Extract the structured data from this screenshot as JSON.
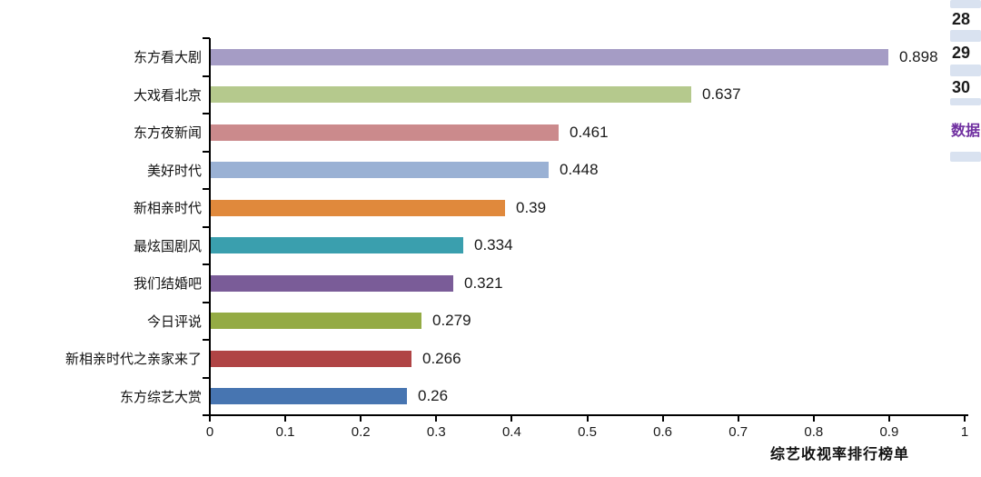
{
  "chart_data": {
    "type": "bar",
    "orientation": "horizontal",
    "title": "",
    "xlabel": "综艺收视率排行榜单",
    "ylabel": "",
    "xlim": [
      0,
      1
    ],
    "grid": false,
    "legend": null,
    "xtick_labels": [
      "0",
      "0.1",
      "0.2",
      "0.3",
      "0.4",
      "0.5",
      "0.6",
      "0.7",
      "0.8",
      "0.9",
      "1"
    ],
    "categories": [
      "东方看大剧",
      "大戏看北京",
      "东方夜新闻",
      "美好时代",
      "新相亲时代",
      "最炫国剧风",
      "我们结婚吧",
      "今日评说",
      "新相亲时代之亲家来了",
      "东方综艺大赏"
    ],
    "values": [
      0.898,
      0.637,
      0.461,
      0.448,
      0.39,
      0.334,
      0.321,
      0.279,
      0.266,
      0.26
    ],
    "value_labels": [
      "0.898",
      "0.637",
      "0.461",
      "0.448",
      "0.39",
      "0.334",
      "0.321",
      "0.279",
      "0.266",
      "0.26"
    ],
    "bar_colors": [
      "#a59cc5",
      "#b5c98d",
      "#cb8a8c",
      "#9ab1d4",
      "#e0893c",
      "#3a9fae",
      "#7a5c98",
      "#94ab44",
      "#b04445",
      "#4775b1"
    ],
    "axis_color": "#000000",
    "text_color": "#1a1a1a"
  },
  "side_panel": {
    "row_numbers": [
      "28",
      "29",
      "30"
    ],
    "sheet_tab_label": "数据",
    "cell_fill": "#d9e2f0",
    "number_color": "#1c1c1c",
    "tab_color": "#7030a0"
  }
}
